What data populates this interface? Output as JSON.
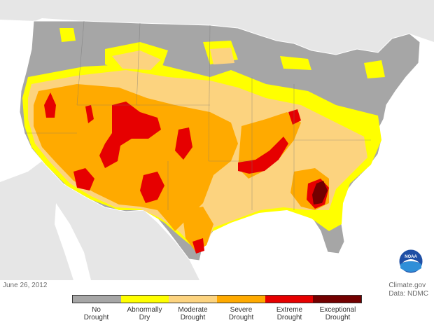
{
  "caption": {
    "date": "June 26, 2012"
  },
  "credit": {
    "line1": "Climate.gov",
    "line2": "Data: NDMC"
  },
  "logo": {
    "text": "NOAA"
  },
  "legend": {
    "items": [
      {
        "line1": "No",
        "line2": "Drought",
        "color": "#a6a6a6"
      },
      {
        "line1": "Abnormally",
        "line2": "Dry",
        "color": "#ffff00"
      },
      {
        "line1": "Moderate",
        "line2": "Drought",
        "color": "#fcd37f"
      },
      {
        "line1": "Severe",
        "line2": "Drought",
        "color": "#ffaa00"
      },
      {
        "line1": "Extreme",
        "line2": "Drought",
        "color": "#e60000"
      },
      {
        "line1": "Exceptional",
        "line2": "Drought",
        "color": "#730000"
      }
    ]
  }
}
